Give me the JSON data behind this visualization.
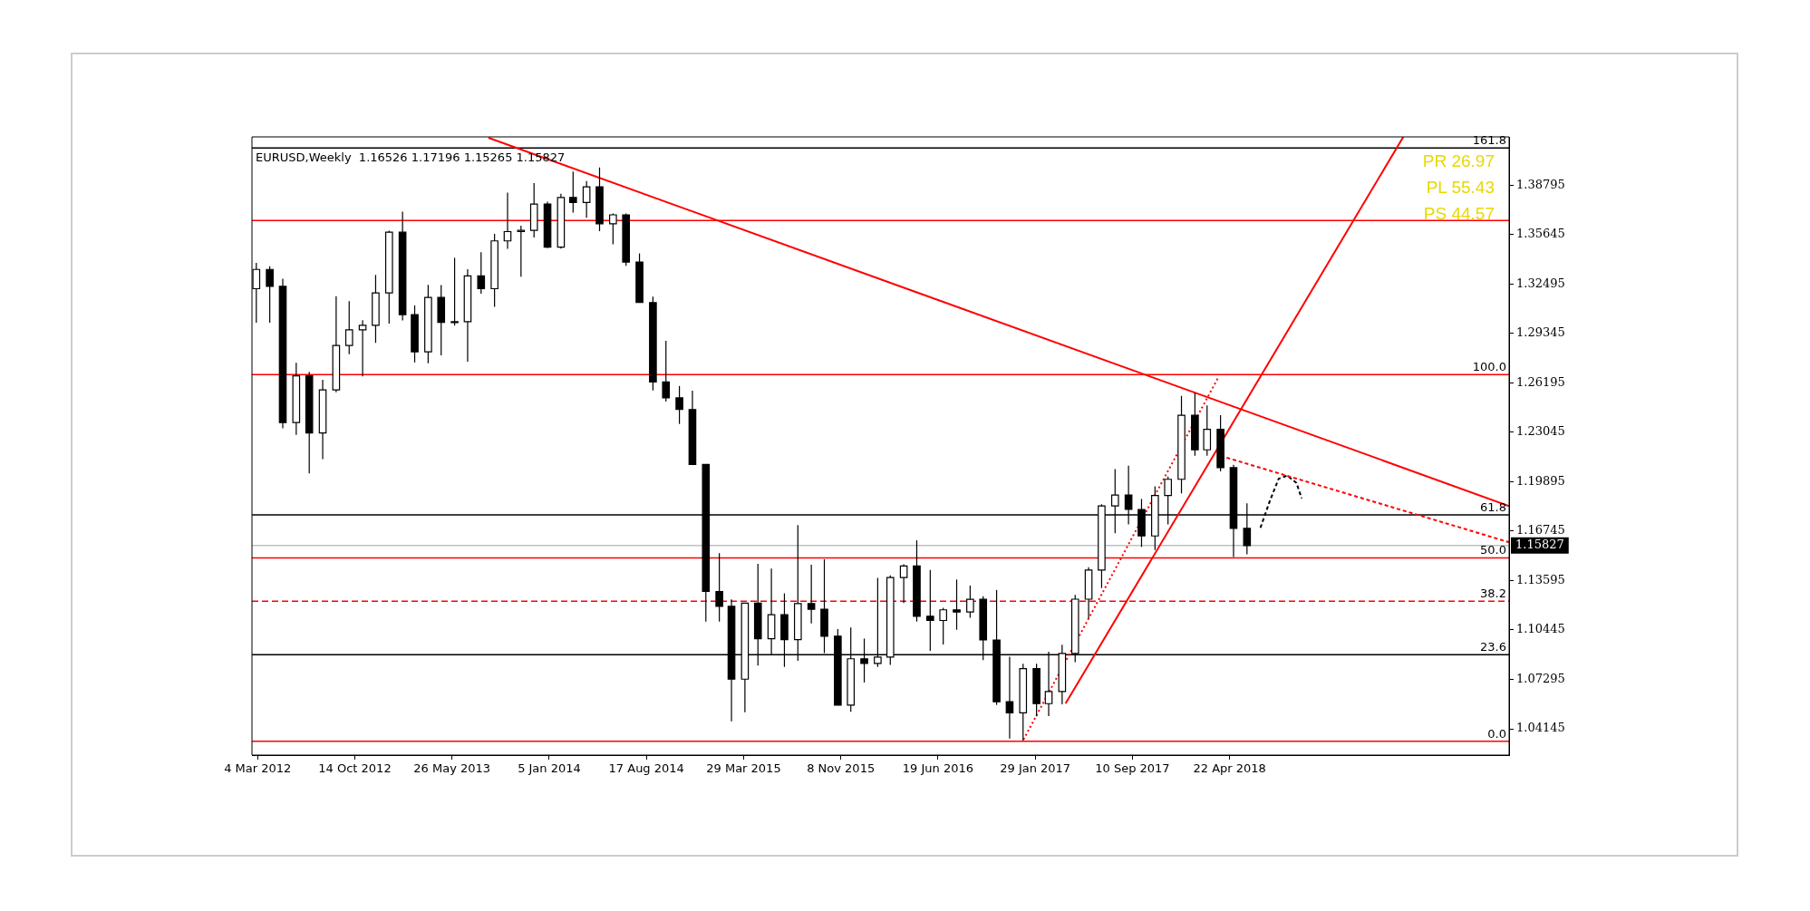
{
  "chart_data": {
    "type": "candlestick",
    "title": "EURUSD,Weekly  1.16526 1.17196 1.15265 1.15827",
    "xlim": [
      "2012-02-20",
      "2020-01-26"
    ],
    "xticks": [
      {
        "value": "2012-03-04",
        "label": "4 Mar 2012"
      },
      {
        "value": "2012-10-14",
        "label": "14 Oct 2012"
      },
      {
        "value": "2013-05-26",
        "label": "26 May 2013"
      },
      {
        "value": "2014-01-05",
        "label": "5 Jan 2014"
      },
      {
        "value": "2014-08-17",
        "label": "17 Aug 2014"
      },
      {
        "value": "2015-03-29",
        "label": "29 Mar 2015"
      },
      {
        "value": "2015-11-08",
        "label": "8 Nov 2015"
      },
      {
        "value": "2016-06-19",
        "label": "19 Jun 2016"
      },
      {
        "value": "2017-01-29",
        "label": "29 Jan 2017"
      },
      {
        "value": "2017-09-10",
        "label": "10 Sep 2017"
      },
      {
        "value": "2018-04-22",
        "label": "22 Apr 2018"
      }
    ],
    "ylim": [
      1.0247,
      1.4188
    ],
    "yticks": [
      1.04145,
      1.07295,
      1.10445,
      1.13595,
      1.16745,
      1.19895,
      1.23045,
      1.26195,
      1.29345,
      1.32495,
      1.35645,
      1.38795
    ],
    "grid": false,
    "legend": false,
    "series": [
      {
        "type": "line",
        "color": "#ff0000",
        "line_style": "solid",
        "x": [
          "2013-08-18",
          "2020-01-26"
        ],
        "values": [
          1.4182,
          1.1835
        ]
      },
      {
        "type": "line",
        "color": "#ff0000",
        "line_style": "solid",
        "x": [
          "2017-04-09",
          "2019-05-27"
        ],
        "values": [
          1.0576,
          1.4187
        ]
      },
      {
        "type": "line",
        "color": "#ff0000",
        "line_style": "dotted",
        "x": [
          "2017-01-02",
          "2018-03-27"
        ],
        "values": [
          1.0346,
          1.2655
        ]
      },
      {
        "type": "line",
        "color": "#ff0000",
        "line_style": "dashed",
        "x": [
          "2018-04-15",
          "2020-01-26"
        ],
        "values": [
          1.2143,
          1.1604
        ]
      },
      {
        "type": "line",
        "color": "#000000",
        "line_style": "dashed",
        "x": [
          "2018-07-02",
          "2018-07-24",
          "2018-08-13",
          "2018-09-02",
          "2018-09-23",
          "2018-10-05"
        ],
        "values": [
          1.1696,
          1.187,
          1.2009,
          1.2029,
          1.1982,
          1.1884
        ]
      },
      {
        "type": "candlestick",
        "color": "#000000",
        "colors": [
          "#ffffff",
          "#000000",
          "#000000",
          "#ffffff",
          "#000000",
          "#ffffff",
          "#ffffff",
          "#ffffff",
          "#ffffff",
          "#ffffff",
          "#ffffff",
          "#000000",
          "#000000",
          "#ffffff",
          "#000000",
          "#ffffff",
          "#ffffff",
          "#000000",
          "#ffffff",
          "#ffffff",
          "#ffffff",
          "#ffffff",
          "#000000",
          "#ffffff",
          "#000000",
          "#ffffff",
          "#000000",
          "#ffffff",
          "#000000",
          "#000000",
          "#000000",
          "#000000",
          "#000000",
          "#000000",
          "#000000",
          "#000000",
          "#000000",
          "#ffffff",
          "#000000",
          "#ffffff",
          "#000000",
          "#ffffff",
          "#000000",
          "#000000",
          "#000000",
          "#ffffff",
          "#000000",
          "#ffffff",
          "#ffffff",
          "#ffffff",
          "#000000",
          "#000000",
          "#ffffff",
          "#000000",
          "#ffffff",
          "#000000",
          "#000000",
          "#000000",
          "#ffffff",
          "#000000",
          "#ffffff",
          "#ffffff",
          "#ffffff",
          "#ffffff",
          "#ffffff",
          "#ffffff",
          "#000000",
          "#000000",
          "#ffffff",
          "#ffffff",
          "#ffffff",
          "#000000",
          "#ffffff",
          "#000000",
          "#000000",
          "#000000"
        ],
        "x": [
          "2012-03",
          "2012-04",
          "2012-05",
          "2012-06",
          "2012-07",
          "2012-08",
          "2012-09",
          "2012-10",
          "2012-11",
          "2012-12",
          "2013-01",
          "2013-02",
          "2013-03",
          "2013-04",
          "2013-05",
          "2013-06",
          "2013-07",
          "2013-08",
          "2013-09",
          "2013-10",
          "2013-11",
          "2013-12",
          "2014-01",
          "2014-02",
          "2014-03",
          "2014-04",
          "2014-05",
          "2014-06",
          "2014-07",
          "2014-08",
          "2014-09",
          "2014-10",
          "2014-11",
          "2014-12",
          "2015-01",
          "2015-02",
          "2015-03",
          "2015-04",
          "2015-05",
          "2015-06",
          "2015-07",
          "2015-08",
          "2015-09",
          "2015-10",
          "2015-11",
          "2015-12",
          "2016-01",
          "2016-02",
          "2016-03",
          "2016-04",
          "2016-05",
          "2016-06",
          "2016-07",
          "2016-08",
          "2016-09",
          "2016-10",
          "2016-11",
          "2016-12",
          "2017-01",
          "2017-02",
          "2017-03",
          "2017-04",
          "2017-05",
          "2017-06",
          "2017-07",
          "2017-08",
          "2017-09",
          "2017-10",
          "2017-11",
          "2017-12",
          "2018-01",
          "2018-02",
          "2018-03",
          "2018-04",
          "2018-05",
          "2018-06"
        ],
        "ohlc": [
          [
            1.322,
            1.3385,
            1.3003,
            1.3343
          ],
          [
            1.3343,
            1.3363,
            1.3003,
            1.3235
          ],
          [
            1.3235,
            1.3283,
            1.233,
            1.2367
          ],
          [
            1.2367,
            1.2747,
            1.2288,
            1.2665
          ],
          [
            1.2665,
            1.269,
            1.2042,
            1.23
          ],
          [
            1.23,
            1.264,
            1.2134,
            1.2575
          ],
          [
            1.2575,
            1.3172,
            1.256,
            1.2858
          ],
          [
            1.2858,
            1.314,
            1.2802,
            1.2958
          ],
          [
            1.2958,
            1.302,
            1.2661,
            1.2987
          ],
          [
            1.2987,
            1.3308,
            1.2875,
            1.3193
          ],
          [
            1.3193,
            1.359,
            1.2998,
            1.358
          ],
          [
            1.358,
            1.3711,
            1.3018,
            1.3055
          ],
          [
            1.3055,
            1.3114,
            1.275,
            1.2818
          ],
          [
            1.2818,
            1.3244,
            1.2745,
            1.3165
          ],
          [
            1.3165,
            1.3243,
            1.2796,
            1.3005
          ],
          [
            1.3005,
            1.3417,
            1.2985,
            1.301
          ],
          [
            1.301,
            1.3345,
            1.2755,
            1.3302
          ],
          [
            1.3302,
            1.3452,
            1.3188,
            1.322
          ],
          [
            1.322,
            1.3569,
            1.3105,
            1.3525
          ],
          [
            1.3525,
            1.3833,
            1.3475,
            1.3584
          ],
          [
            1.3584,
            1.3622,
            1.3296,
            1.3592
          ],
          [
            1.3592,
            1.3893,
            1.3547,
            1.376
          ],
          [
            1.376,
            1.3775,
            1.3479,
            1.3485
          ],
          [
            1.3485,
            1.3825,
            1.3476,
            1.3802
          ],
          [
            1.3802,
            1.3967,
            1.3705,
            1.377
          ],
          [
            1.377,
            1.3906,
            1.3672,
            1.387
          ],
          [
            1.387,
            1.3993,
            1.3587,
            1.3634
          ],
          [
            1.3634,
            1.37,
            1.3503,
            1.3691
          ],
          [
            1.3691,
            1.37,
            1.3366,
            1.339
          ],
          [
            1.339,
            1.3445,
            1.3132,
            1.3132
          ],
          [
            1.3132,
            1.317,
            1.2571,
            1.2626
          ],
          [
            1.2626,
            1.2888,
            1.25,
            1.2524
          ],
          [
            1.2524,
            1.26,
            1.2358,
            1.245
          ],
          [
            1.245,
            1.257,
            1.21,
            1.21
          ],
          [
            1.21,
            1.21,
            1.1098,
            1.129
          ],
          [
            1.129,
            1.1534,
            1.1098,
            1.1195
          ],
          [
            1.1195,
            1.124,
            1.0462,
            1.0731
          ],
          [
            1.0731,
            1.1216,
            1.052,
            1.1216
          ],
          [
            1.1216,
            1.1467,
            1.0818,
            1.0989
          ],
          [
            1.0989,
            1.1436,
            1.0888,
            1.1142
          ],
          [
            1.1142,
            1.1278,
            1.0809,
            1.0983
          ],
          [
            1.0983,
            1.1714,
            1.0848,
            1.1213
          ],
          [
            1.1213,
            1.146,
            1.1087,
            1.1177
          ],
          [
            1.1177,
            1.1495,
            1.0897,
            1.1005
          ],
          [
            1.1005,
            1.105,
            1.0565,
            1.0565
          ],
          [
            1.0565,
            1.106,
            1.0523,
            1.0861
          ],
          [
            1.0861,
            1.099,
            1.071,
            1.0831
          ],
          [
            1.0831,
            1.1376,
            1.0809,
            1.0872
          ],
          [
            1.0872,
            1.1392,
            1.0822,
            1.1379
          ],
          [
            1.1379,
            1.1464,
            1.1216,
            1.1453
          ],
          [
            1.1453,
            1.1616,
            1.1098,
            1.1132
          ],
          [
            1.1132,
            1.1428,
            1.0912,
            1.1105
          ],
          [
            1.1105,
            1.1186,
            1.0952,
            1.1173
          ],
          [
            1.1173,
            1.1366,
            1.1046,
            1.1159
          ],
          [
            1.1159,
            1.1327,
            1.1122,
            1.124
          ],
          [
            1.124,
            1.1259,
            1.0852,
            1.0981
          ],
          [
            1.0981,
            1.13,
            1.0567,
            1.0587
          ],
          [
            1.0587,
            1.0874,
            1.0352,
            1.0517
          ],
          [
            1.0517,
            1.0829,
            1.034,
            1.0798
          ],
          [
            1.0798,
            1.0829,
            1.0494,
            1.0575
          ],
          [
            1.0575,
            1.0906,
            1.0495,
            1.0652
          ],
          [
            1.0652,
            1.0951,
            1.057,
            1.0895
          ],
          [
            1.0895,
            1.1268,
            1.0839,
            1.1241
          ],
          [
            1.1241,
            1.1445,
            1.1118,
            1.1426
          ],
          [
            1.1426,
            1.1846,
            1.1312,
            1.1835
          ],
          [
            1.1835,
            1.207,
            1.1662,
            1.1905
          ],
          [
            1.1905,
            1.2092,
            1.1717,
            1.1813
          ],
          [
            1.1813,
            1.188,
            1.1574,
            1.1644
          ],
          [
            1.1644,
            1.1961,
            1.1554,
            1.1902
          ],
          [
            1.1902,
            1.2023,
            1.1718,
            1.2005
          ],
          [
            1.2005,
            1.2537,
            1.1915,
            1.2413
          ],
          [
            1.2413,
            1.2555,
            1.2155,
            1.2193
          ],
          [
            1.2193,
            1.2476,
            1.2155,
            1.2324
          ],
          [
            1.2324,
            1.2414,
            1.2055,
            1.2079
          ],
          [
            1.2079,
            1.2097,
            1.151,
            1.1692
          ],
          [
            1.1692,
            1.1852,
            1.1527,
            1.15827
          ]
        ]
      }
    ],
    "ref_lines": [
      {
        "axis": "y",
        "value": 1.4117,
        "color": "#000000"
      },
      {
        "axis": "y",
        "value": 1.3655,
        "color": "#ff0000"
      },
      {
        "axis": "y",
        "value": 1.2672,
        "color": "#ff0000"
      },
      {
        "axis": "y",
        "value": 1.1779,
        "color": "#000000"
      },
      {
        "axis": "y",
        "value": 1.15827,
        "label": "1.15827",
        "color": "#c0c0c0"
      },
      {
        "axis": "y",
        "value": 1.1504,
        "color": "#ff0000"
      },
      {
        "axis": "y",
        "value": 1.1228,
        "color": "#ff0000",
        "line_style": "dashed"
      },
      {
        "axis": "y",
        "value": 1.0887,
        "color": "#000000"
      },
      {
        "axis": "y",
        "value": 1.0335,
        "color": "#ff0000"
      }
    ],
    "annotations": [
      "PR 26.97",
      "PL 55.43",
      "PS 44.57",
      {
        "text": "161.8",
        "x": "2020-01-26",
        "y": 1.4117
      },
      {
        "text": "100.0",
        "x": "2020-01-26",
        "y": 1.2672
      },
      {
        "text": "61.8",
        "x": "2020-01-26",
        "y": 1.1779
      },
      {
        "text": "50.0",
        "x": "2020-01-26",
        "y": 1.1504
      },
      {
        "text": "38.2",
        "x": "2020-01-26",
        "y": 1.1228
      },
      {
        "text": "23.6",
        "x": "2020-01-26",
        "y": 1.0887
      },
      {
        "text": "0.0",
        "x": "2020-01-26",
        "y": 1.0335
      }
    ]
  }
}
